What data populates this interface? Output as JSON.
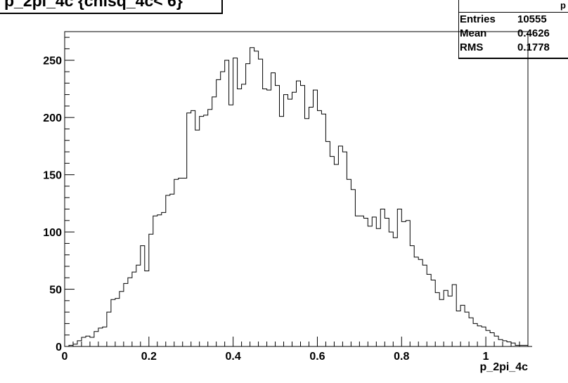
{
  "title": "p_2pi_4c {chisq_4c< 6}",
  "stats": {
    "caption": "p",
    "rows": [
      {
        "label": "Entries",
        "value": "10555"
      },
      {
        "label": "Mean",
        "value": "0.4626"
      },
      {
        "label": "RMS",
        "value": "0.1778"
      }
    ]
  },
  "chart_data": {
    "type": "bar",
    "style": "step-histogram",
    "xlabel": "p_2pi_4c",
    "ylabel": "",
    "xlim": [
      0,
      1.1
    ],
    "ylim": [
      0,
      275
    ],
    "xticks": [
      "0",
      "0.2",
      "0.4",
      "0.6",
      "0.8",
      "1"
    ],
    "yticks": [
      "0",
      "50",
      "100",
      "150",
      "200",
      "250"
    ],
    "bin_width": 0.01,
    "bin_edges_start": 0.0,
    "values": [
      0,
      1,
      2,
      5,
      8,
      9,
      8,
      13,
      16,
      17,
      30,
      41,
      42,
      48,
      55,
      60,
      65,
      71,
      88,
      66,
      98,
      114,
      115,
      117,
      132,
      133,
      146,
      147,
      147,
      204,
      206,
      189,
      201,
      202,
      207,
      218,
      233,
      240,
      250,
      211,
      252,
      225,
      229,
      247,
      261,
      258,
      251,
      225,
      224,
      239,
      228,
      201,
      220,
      216,
      222,
      232,
      228,
      199,
      209,
      224,
      206,
      203,
      179,
      166,
      159,
      175,
      170,
      146,
      137,
      114,
      114,
      112,
      105,
      113,
      103,
      120,
      112,
      100,
      95,
      120,
      109,
      110,
      88,
      78,
      76,
      71,
      63,
      58,
      47,
      41,
      49,
      44,
      54,
      31,
      36,
      30,
      25,
      20,
      18,
      17,
      14,
      12,
      9,
      6,
      5,
      4,
      3,
      1,
      1,
      1,
      0
    ]
  }
}
